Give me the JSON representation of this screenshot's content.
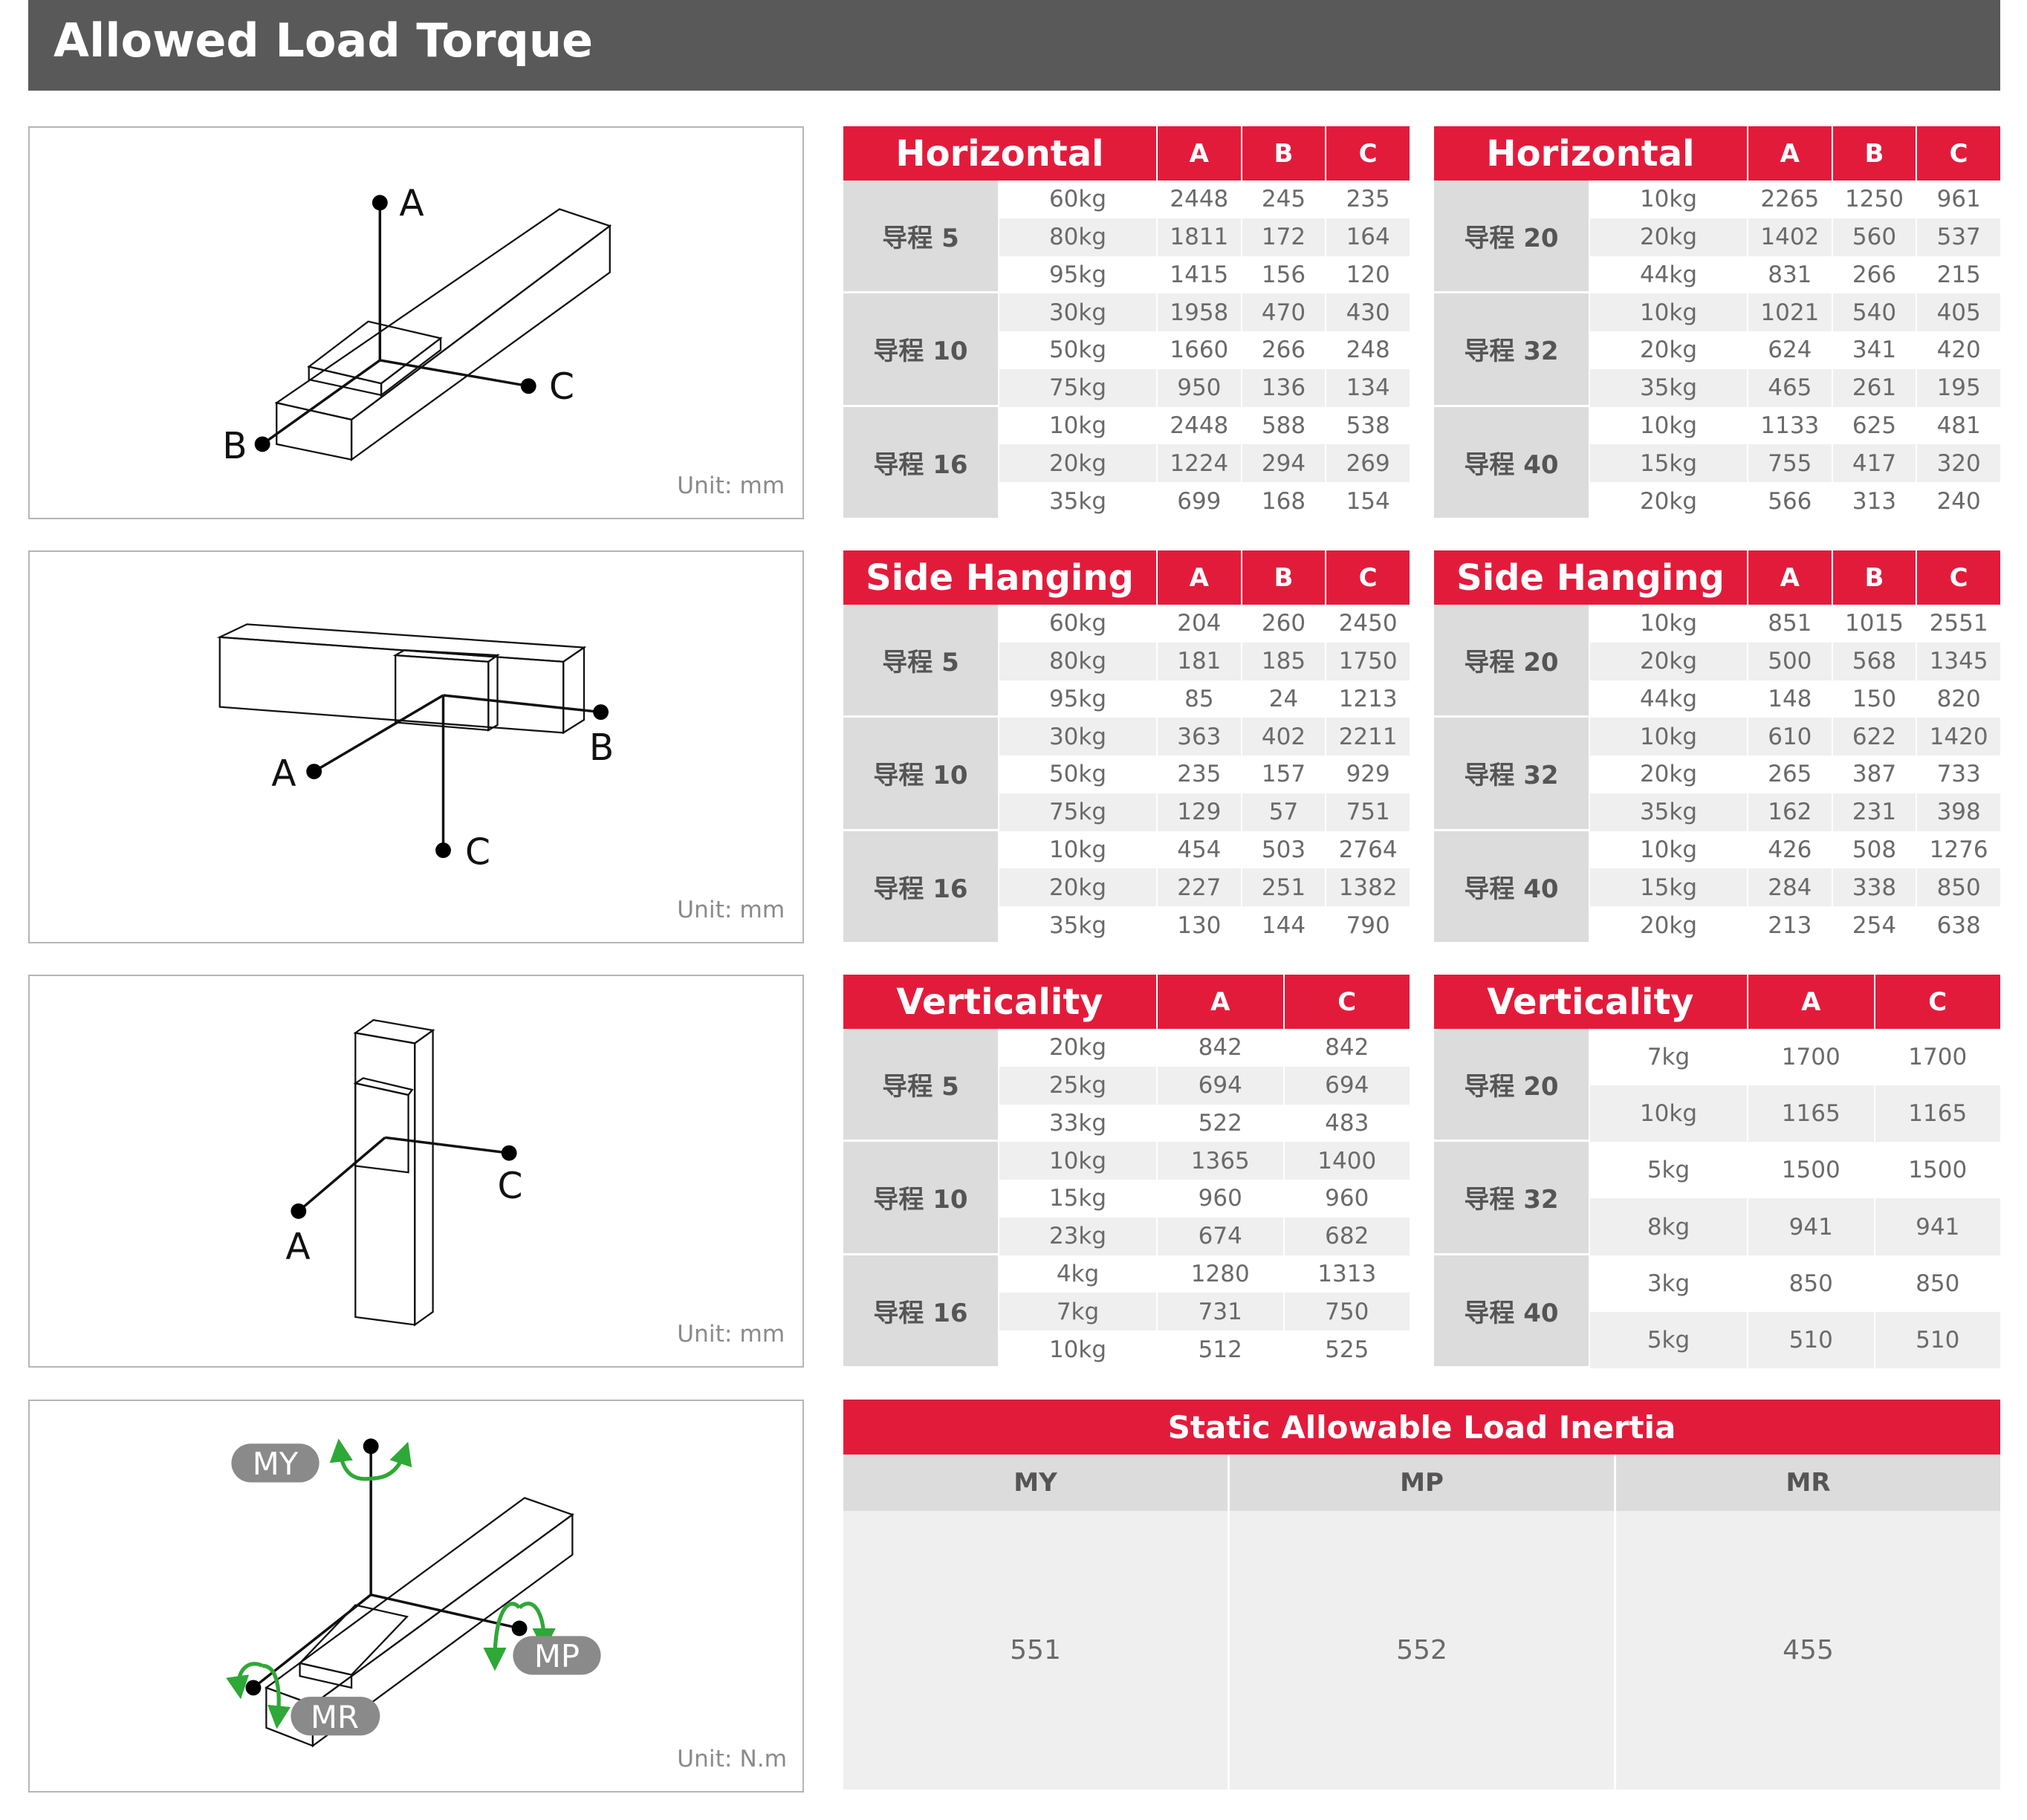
{
  "title": "Allowed Load Torque",
  "colors": {
    "header_red": "#e31b3b",
    "title_bar": "#5a595a",
    "group_gray": "#dcdcdc",
    "stripe": "#efefef",
    "arrow_green": "#2ea836"
  },
  "diagrams": [
    {
      "labels": {
        "a": "A",
        "b": "B",
        "c": "C"
      },
      "unit": "Unit: mm"
    },
    {
      "labels": {
        "a": "A",
        "b": "B",
        "c": "C"
      },
      "unit": "Unit: mm"
    },
    {
      "labels": {
        "a": "A",
        "c": "C"
      },
      "unit": "Unit: mm"
    },
    {
      "labels": {
        "my": "MY",
        "mp": "MP",
        "mr": "MR"
      },
      "unit": "Unit: N.m"
    }
  ],
  "tables": [
    {
      "title": "Horizontal",
      "columns": [
        "A",
        "B",
        "C"
      ],
      "groups": [
        {
          "label": "导程 5",
          "rows": [
            {
              "load": "60kg",
              "values": [
                "2448",
                "245",
                "235"
              ]
            },
            {
              "load": "80kg",
              "values": [
                "1811",
                "172",
                "164"
              ]
            },
            {
              "load": "95kg",
              "values": [
                "1415",
                "156",
                "120"
              ]
            }
          ]
        },
        {
          "label": "导程 10",
          "rows": [
            {
              "load": "30kg",
              "values": [
                "1958",
                "470",
                "430"
              ]
            },
            {
              "load": "50kg",
              "values": [
                "1660",
                "266",
                "248"
              ]
            },
            {
              "load": "75kg",
              "values": [
                "950",
                "136",
                "134"
              ]
            }
          ]
        },
        {
          "label": "导程 16",
          "rows": [
            {
              "load": "10kg",
              "values": [
                "2448",
                "588",
                "538"
              ]
            },
            {
              "load": "20kg",
              "values": [
                "1224",
                "294",
                "269"
              ]
            },
            {
              "load": "35kg",
              "values": [
                "699",
                "168",
                "154"
              ]
            }
          ]
        }
      ]
    },
    {
      "title": "Horizontal",
      "columns": [
        "A",
        "B",
        "C"
      ],
      "groups": [
        {
          "label": "导程 20",
          "rows": [
            {
              "load": "10kg",
              "values": [
                "2265",
                "1250",
                "961"
              ]
            },
            {
              "load": "20kg",
              "values": [
                "1402",
                "560",
                "537"
              ]
            },
            {
              "load": "44kg",
              "values": [
                "831",
                "266",
                "215"
              ]
            }
          ]
        },
        {
          "label": "导程 32",
          "rows": [
            {
              "load": "10kg",
              "values": [
                "1021",
                "540",
                "405"
              ]
            },
            {
              "load": "20kg",
              "values": [
                "624",
                "341",
                "420"
              ]
            },
            {
              "load": "35kg",
              "values": [
                "465",
                "261",
                "195"
              ]
            }
          ]
        },
        {
          "label": "导程 40",
          "rows": [
            {
              "load": "10kg",
              "values": [
                "1133",
                "625",
                "481"
              ]
            },
            {
              "load": "15kg",
              "values": [
                "755",
                "417",
                "320"
              ]
            },
            {
              "load": "20kg",
              "values": [
                "566",
                "313",
                "240"
              ]
            }
          ]
        }
      ]
    },
    {
      "title": "Side Hanging",
      "columns": [
        "A",
        "B",
        "C"
      ],
      "groups": [
        {
          "label": "导程 5",
          "rows": [
            {
              "load": "60kg",
              "values": [
                "204",
                "260",
                "2450"
              ]
            },
            {
              "load": "80kg",
              "values": [
                "181",
                "185",
                "1750"
              ]
            },
            {
              "load": "95kg",
              "values": [
                "85",
                "24",
                "1213"
              ]
            }
          ]
        },
        {
          "label": "导程 10",
          "rows": [
            {
              "load": "30kg",
              "values": [
                "363",
                "402",
                "2211"
              ]
            },
            {
              "load": "50kg",
              "values": [
                "235",
                "157",
                "929"
              ]
            },
            {
              "load": "75kg",
              "values": [
                "129",
                "57",
                "751"
              ]
            }
          ]
        },
        {
          "label": "导程 16",
          "rows": [
            {
              "load": "10kg",
              "values": [
                "454",
                "503",
                "2764"
              ]
            },
            {
              "load": "20kg",
              "values": [
                "227",
                "251",
                "1382"
              ]
            },
            {
              "load": "35kg",
              "values": [
                "130",
                "144",
                "790"
              ]
            }
          ]
        }
      ]
    },
    {
      "title": "Side Hanging",
      "columns": [
        "A",
        "B",
        "C"
      ],
      "groups": [
        {
          "label": "导程 20",
          "rows": [
            {
              "load": "10kg",
              "values": [
                "851",
                "1015",
                "2551"
              ]
            },
            {
              "load": "20kg",
              "values": [
                "500",
                "568",
                "1345"
              ]
            },
            {
              "load": "44kg",
              "values": [
                "148",
                "150",
                "820"
              ]
            }
          ]
        },
        {
          "label": "导程 32",
          "rows": [
            {
              "load": "10kg",
              "values": [
                "610",
                "622",
                "1420"
              ]
            },
            {
              "load": "20kg",
              "values": [
                "265",
                "387",
                "733"
              ]
            },
            {
              "load": "35kg",
              "values": [
                "162",
                "231",
                "398"
              ]
            }
          ]
        },
        {
          "label": "导程 40",
          "rows": [
            {
              "load": "10kg",
              "values": [
                "426",
                "508",
                "1276"
              ]
            },
            {
              "load": "15kg",
              "values": [
                "284",
                "338",
                "850"
              ]
            },
            {
              "load": "20kg",
              "values": [
                "213",
                "254",
                "638"
              ]
            }
          ]
        }
      ]
    },
    {
      "title": "Verticality",
      "columns": [
        "A",
        "C"
      ],
      "groups": [
        {
          "label": "导程 5",
          "rows": [
            {
              "load": "20kg",
              "values": [
                "842",
                "842"
              ]
            },
            {
              "load": "25kg",
              "values": [
                "694",
                "694"
              ]
            },
            {
              "load": "33kg",
              "values": [
                "522",
                "483"
              ]
            }
          ]
        },
        {
          "label": "导程 10",
          "rows": [
            {
              "load": "10kg",
              "values": [
                "1365",
                "1400"
              ]
            },
            {
              "load": "15kg",
              "values": [
                "960",
                "960"
              ]
            },
            {
              "load": "23kg",
              "values": [
                "674",
                "682"
              ]
            }
          ]
        },
        {
          "label": "导程 16",
          "rows": [
            {
              "load": "4kg",
              "values": [
                "1280",
                "1313"
              ]
            },
            {
              "load": "7kg",
              "values": [
                "731",
                "750"
              ]
            },
            {
              "load": "10kg",
              "values": [
                "512",
                "525"
              ]
            }
          ]
        }
      ]
    },
    {
      "title": "Verticality",
      "columns": [
        "A",
        "C"
      ],
      "groups": [
        {
          "label": "导程 20",
          "rows": [
            {
              "load": "7kg",
              "values": [
                "1700",
                "1700"
              ]
            },
            {
              "load": "10kg",
              "values": [
                "1165",
                "1165"
              ]
            }
          ]
        },
        {
          "label": "导程 32",
          "rows": [
            {
              "load": "5kg",
              "values": [
                "1500",
                "1500"
              ]
            },
            {
              "load": "8kg",
              "values": [
                "941",
                "941"
              ]
            }
          ]
        },
        {
          "label": "导程 40",
          "rows": [
            {
              "load": "3kg",
              "values": [
                "850",
                "850"
              ]
            },
            {
              "load": "5kg",
              "values": [
                "510",
                "510"
              ]
            }
          ]
        }
      ]
    }
  ],
  "inertia": {
    "title": "Static Allowable Load Inertia",
    "columns": [
      "MY",
      "MP",
      "MR"
    ],
    "values": [
      "551",
      "552",
      "455"
    ]
  }
}
